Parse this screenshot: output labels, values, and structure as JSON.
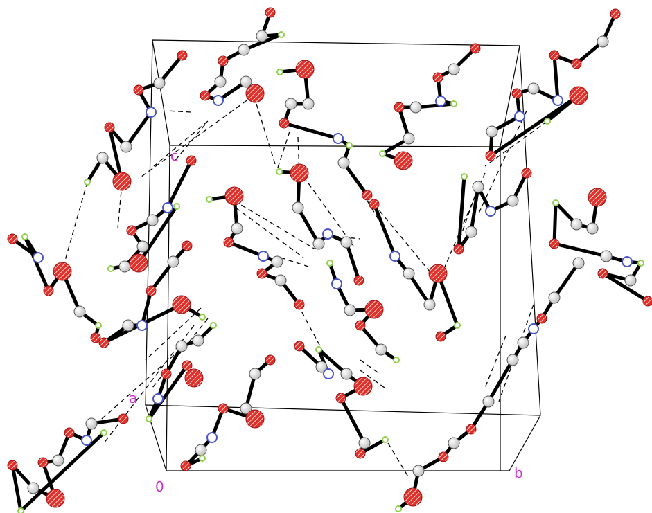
{
  "labels": {
    "axis_c": "c",
    "axis_a": "a",
    "axis_b": "b",
    "origin": "0"
  },
  "colors": {
    "oxygen": "#e0302a",
    "nitrogen": "#4a55c8",
    "carbon": "#f2f2f2",
    "hydrogen": "#8fd14a",
    "bond": "#000000",
    "label": "#cc33cc"
  }
}
